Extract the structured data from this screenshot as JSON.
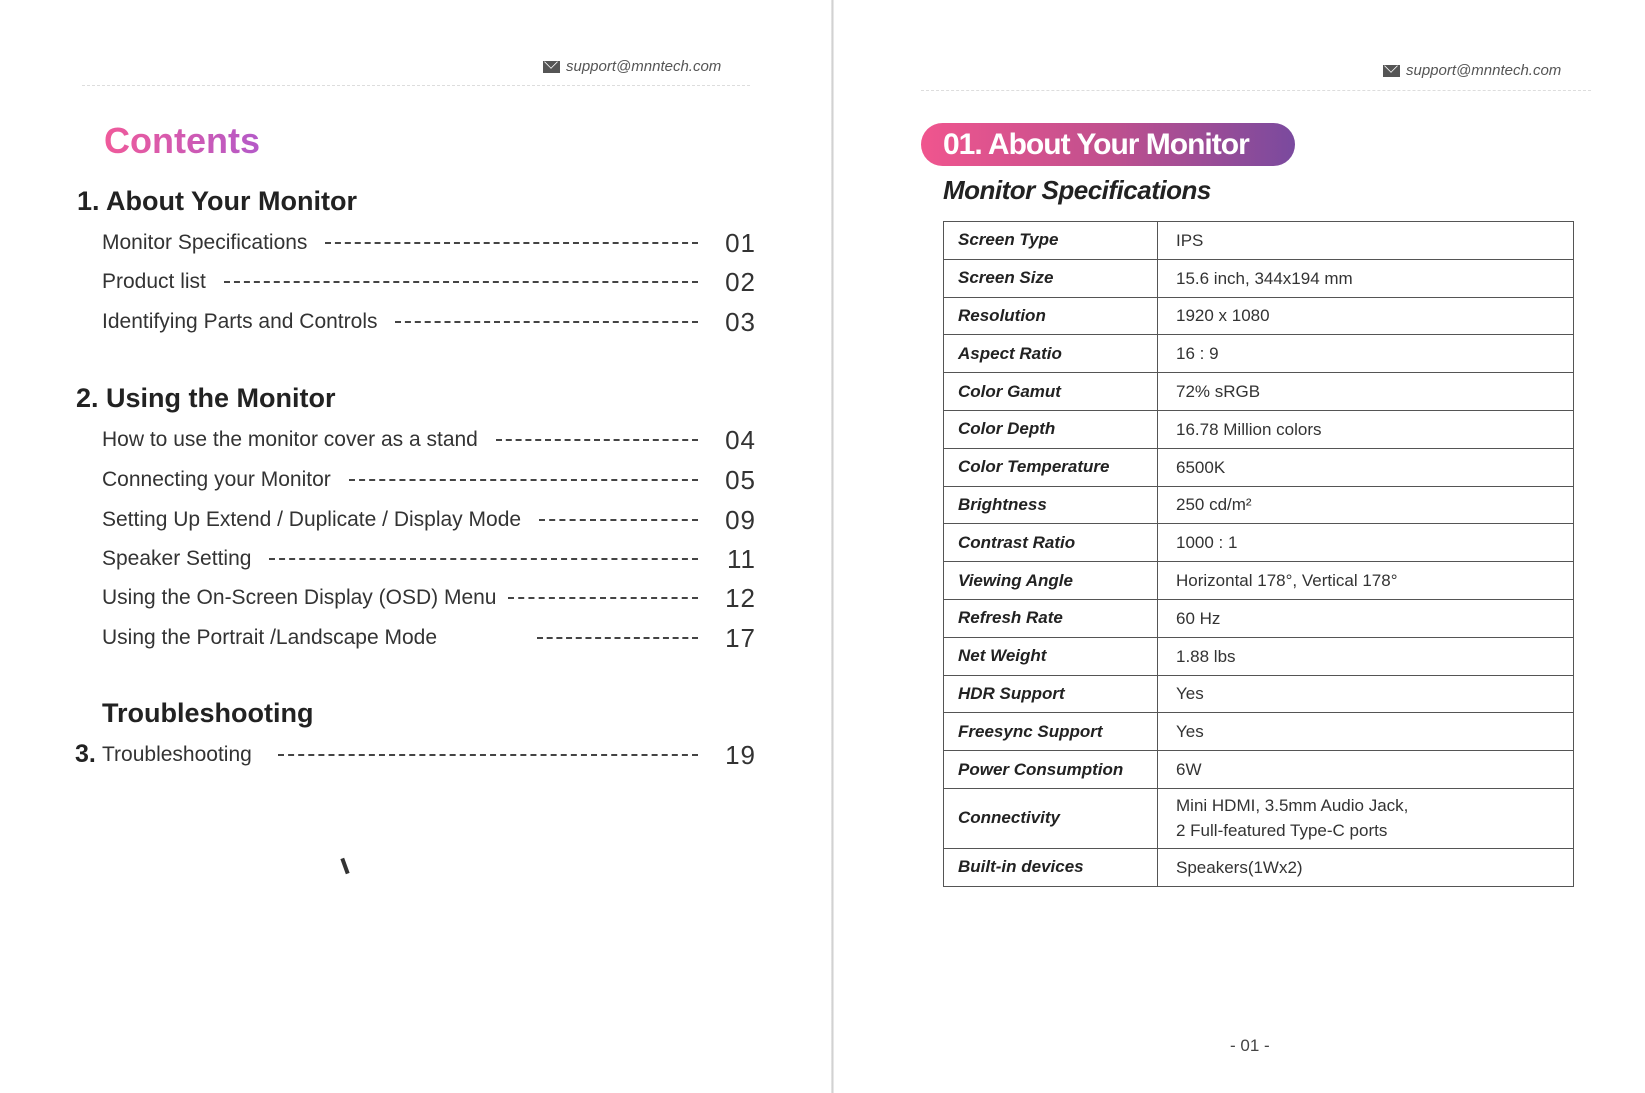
{
  "left": {
    "email": "support@mnntech.com",
    "title": "Contents",
    "sections": [
      {
        "heading": "1. About Your Monitor",
        "items": [
          {
            "label": "Monitor Specifications",
            "page": "01"
          },
          {
            "label": "Product list",
            "page": "02"
          },
          {
            "label": "Identifying Parts and Controls",
            "page": "03"
          }
        ]
      },
      {
        "heading": "2. Using the Monitor",
        "items": [
          {
            "label": "How to use the monitor cover as a stand",
            "page": "04"
          },
          {
            "label": "Connecting your Monitor",
            "page": "05"
          },
          {
            "label": "Setting Up Extend / Duplicate / Display Mode",
            "page": "09"
          },
          {
            "label": "Speaker Setting",
            "page": "11"
          },
          {
            "label": "Using the On-Screen Display (OSD) Menu",
            "page": "12"
          },
          {
            "label": "Using the Portrait /Landscape Mode",
            "page": "17"
          }
        ]
      },
      {
        "heading": "Troubleshooting",
        "number": "3.",
        "items": [
          {
            "label": "Troubleshooting",
            "page": "19"
          }
        ]
      }
    ]
  },
  "right": {
    "email": "support@mnntech.com",
    "chapter": "01. About Your Monitor",
    "subtitle": "Monitor Specifications",
    "specs": [
      {
        "k": "Screen Type",
        "v": "IPS"
      },
      {
        "k": "Screen Size",
        "v": "15.6 inch, 344x194 mm"
      },
      {
        "k": "Resolution",
        "v": "1920 x 1080"
      },
      {
        "k": "Aspect Ratio",
        "v": "16 : 9"
      },
      {
        "k": "Color Gamut",
        "v": "72% sRGB"
      },
      {
        "k": "Color Depth",
        "v": "16.78 Million colors"
      },
      {
        "k": "Color Temperature",
        "v": "6500K"
      },
      {
        "k": "Brightness",
        "v": "250 cd/m²"
      },
      {
        "k": "Contrast Ratio",
        "v": "1000 : 1"
      },
      {
        "k": "Viewing Angle",
        "v": "Horizontal 178°, Vertical 178°"
      },
      {
        "k": "Refresh Rate",
        "v": "60 Hz"
      },
      {
        "k": "Net Weight",
        "v": "1.88 lbs"
      },
      {
        "k": "HDR Support",
        "v": "Yes"
      },
      {
        "k": "Freesync Support",
        "v": "Yes"
      },
      {
        "k": "Power Consumption",
        "v": "6W"
      },
      {
        "k": "Connectivity",
        "v": "Mini HDMI, 3.5mm Audio Jack,",
        "v2": "2 Full-featured Type-C ports"
      },
      {
        "k": "Built-in devices",
        "v": "Speakers(1Wx2)"
      }
    ],
    "page_number": "- 01 -"
  },
  "colors": {
    "pink": "#f0558e",
    "purple": "#7a4a9e"
  }
}
